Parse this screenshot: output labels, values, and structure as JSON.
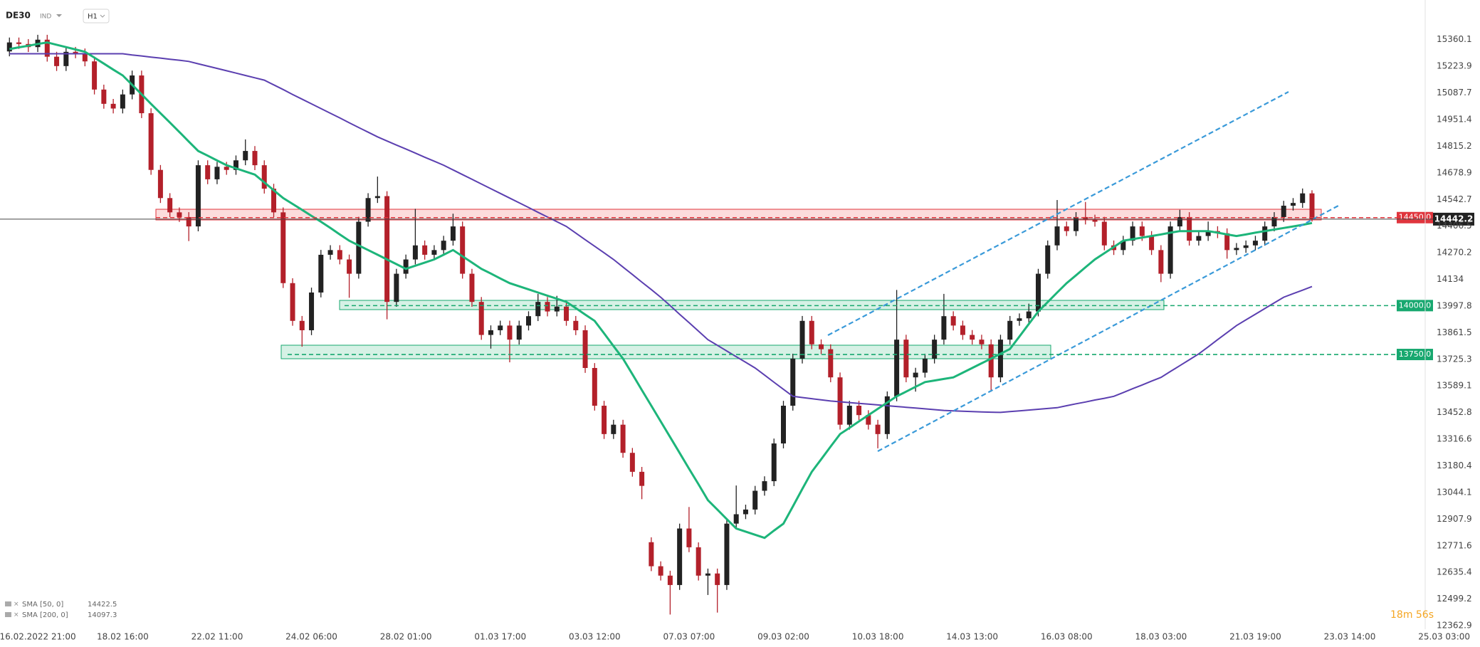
{
  "header": {
    "symbol": "DE30",
    "badge": "IND",
    "timeframe": "H1",
    "timer": "18m 56s"
  },
  "chart_data": {
    "type": "candlestick",
    "categories": [
      null,
      null,
      null,
      "16.02.2022 21:00",
      null,
      null,
      null,
      null,
      null,
      null,
      null,
      null,
      "18.02 16:00",
      null,
      null,
      null,
      null,
      null,
      null,
      null,
      null,
      null,
      "22.02 11:00",
      null,
      null,
      null,
      null,
      null,
      null,
      null,
      null,
      null,
      "24.02 06:00",
      null,
      null,
      null,
      null,
      null,
      null,
      null,
      null,
      null,
      "28.02 01:00",
      null,
      null,
      null,
      null,
      null,
      null,
      null,
      null,
      null,
      "01.03 17:00",
      null,
      null,
      null,
      null,
      null,
      null,
      null,
      null,
      null,
      "03.03 12:00",
      null,
      null,
      null,
      null,
      null,
      null,
      null,
      null,
      null,
      "07.03 07:00",
      null,
      null,
      null,
      null,
      null,
      null,
      null,
      null,
      null,
      "09.03 02:00",
      null,
      null,
      null,
      null,
      null,
      null,
      null,
      null,
      null,
      "10.03 18:00",
      null,
      null,
      null,
      null,
      null,
      null,
      null,
      null,
      null,
      "14.03 13:00",
      null,
      null,
      null,
      null,
      null,
      null,
      null,
      null,
      null,
      "16.03 08:00",
      null,
      null,
      null,
      null,
      null,
      null,
      null,
      null,
      null,
      "18.03 03:00",
      null,
      null,
      null,
      null,
      null,
      null,
      null,
      null,
      null,
      "21.03 19:00",
      null,
      null,
      null,
      null,
      null,
      null,
      null,
      null,
      null,
      "23.03 14:00",
      null,
      null,
      null,
      null,
      null,
      null,
      null,
      null,
      null,
      "25.03 03:00"
    ],
    "ohlc": [
      [
        15300,
        15371,
        15275,
        15346
      ],
      [
        15346,
        15371,
        15313,
        15338
      ],
      [
        15338,
        15363,
        15297,
        15322
      ],
      [
        15322,
        15385,
        15297,
        15360
      ],
      [
        15360,
        15385,
        15248,
        15273
      ],
      [
        15273,
        15298,
        15200,
        15225
      ],
      [
        15225,
        15323,
        15200,
        15298
      ],
      [
        15298,
        15323,
        15265,
        15290
      ],
      [
        15290,
        15315,
        15224,
        15249
      ],
      [
        15249,
        15274,
        15080,
        15105
      ],
      [
        15105,
        15130,
        15007,
        15032
      ],
      [
        15032,
        15057,
        14983,
        15008
      ],
      [
        15008,
        15105,
        14983,
        15080
      ],
      [
        15080,
        15202,
        15055,
        15177
      ],
      [
        15177,
        15202,
        14959,
        14984
      ],
      [
        14984,
        15009,
        14669,
        14694
      ],
      [
        14694,
        14719,
        14525,
        14550
      ],
      [
        14550,
        14575,
        14452,
        14477
      ],
      [
        14477,
        14502,
        14428,
        14453
      ],
      [
        14453,
        14478,
        14330,
        14405
      ],
      [
        14405,
        14743,
        14380,
        14718
      ],
      [
        14718,
        14743,
        14621,
        14646
      ],
      [
        14646,
        14735,
        14621,
        14710
      ],
      [
        14710,
        14735,
        14669,
        14694
      ],
      [
        14694,
        14768,
        14669,
        14743
      ],
      [
        14743,
        14850,
        14718,
        14791
      ],
      [
        14791,
        14816,
        14693,
        14718
      ],
      [
        14718,
        14743,
        14573,
        14598
      ],
      [
        14598,
        14623,
        14452,
        14477
      ],
      [
        14477,
        14502,
        14090,
        14115
      ],
      [
        14115,
        14140,
        13897,
        13922
      ],
      [
        13922,
        13947,
        13790,
        13874
      ],
      [
        13874,
        14092,
        13849,
        14067
      ],
      [
        14067,
        14285,
        14042,
        14260
      ],
      [
        14260,
        14309,
        14235,
        14284
      ],
      [
        14284,
        14309,
        14211,
        14236
      ],
      [
        14236,
        14261,
        14040,
        14163
      ],
      [
        14163,
        14454,
        14138,
        14429
      ],
      [
        14429,
        14575,
        14404,
        14550
      ],
      [
        14550,
        14660,
        14525,
        14560
      ],
      [
        14560,
        14585,
        13930,
        14019
      ],
      [
        14019,
        14188,
        13994,
        14163
      ],
      [
        14163,
        14261,
        14138,
        14236
      ],
      [
        14236,
        14495,
        14211,
        14308
      ],
      [
        14308,
        14333,
        14235,
        14260
      ],
      [
        14260,
        14309,
        14235,
        14284
      ],
      [
        14284,
        14357,
        14259,
        14332
      ],
      [
        14332,
        14470,
        14307,
        14405
      ],
      [
        14405,
        14430,
        14138,
        14163
      ],
      [
        14163,
        14188,
        13994,
        14019
      ],
      [
        14019,
        14044,
        13825,
        13850
      ],
      [
        13850,
        13899,
        13780,
        13874
      ],
      [
        13874,
        13923,
        13849,
        13898
      ],
      [
        13898,
        13923,
        13710,
        13826
      ],
      [
        13826,
        13923,
        13801,
        13898
      ],
      [
        13898,
        13971,
        13873,
        13946
      ],
      [
        13946,
        14060,
        13921,
        14019
      ],
      [
        14019,
        14044,
        13945,
        13970
      ],
      [
        13970,
        14050,
        13945,
        13995
      ],
      [
        13995,
        14020,
        13897,
        13922
      ],
      [
        13922,
        13947,
        13849,
        13874
      ],
      [
        13874,
        13899,
        13656,
        13681
      ],
      [
        13681,
        13706,
        13463,
        13488
      ],
      [
        13488,
        13513,
        13318,
        13343
      ],
      [
        13343,
        13416,
        13318,
        13391
      ],
      [
        13391,
        13416,
        13222,
        13247
      ],
      [
        13247,
        13272,
        13125,
        13150
      ],
      [
        13150,
        13175,
        13010,
        13078
      ],
      [
        12790,
        12815,
        12642,
        12667
      ],
      [
        12667,
        12692,
        12594,
        12619
      ],
      [
        12619,
        12644,
        12420,
        12571
      ],
      [
        12571,
        12885,
        12546,
        12860
      ],
      [
        12860,
        12970,
        12739,
        12764
      ],
      [
        12764,
        12789,
        12594,
        12619
      ],
      [
        12619,
        12655,
        12520,
        12630
      ],
      [
        12630,
        12655,
        12430,
        12571
      ],
      [
        12571,
        12910,
        12546,
        12885
      ],
      [
        12885,
        13080,
        12860,
        12933
      ],
      [
        12933,
        12982,
        12908,
        12957
      ],
      [
        12957,
        13078,
        12932,
        13053
      ],
      [
        13053,
        13127,
        13028,
        13102
      ],
      [
        13102,
        13320,
        13077,
        13295
      ],
      [
        13295,
        13513,
        13270,
        13488
      ],
      [
        13488,
        13754,
        13463,
        13729
      ],
      [
        13729,
        13947,
        13704,
        13922
      ],
      [
        13922,
        13947,
        13777,
        13802
      ],
      [
        13802,
        13827,
        13752,
        13777
      ],
      [
        13777,
        13802,
        13608,
        13633
      ],
      [
        13633,
        13658,
        13366,
        13391
      ],
      [
        13391,
        13513,
        13366,
        13488
      ],
      [
        13488,
        13513,
        13415,
        13440
      ],
      [
        13440,
        13465,
        13366,
        13391
      ],
      [
        13391,
        13416,
        13270,
        13343
      ],
      [
        13343,
        13561,
        13318,
        13536
      ],
      [
        13536,
        14080,
        13511,
        13826
      ],
      [
        13826,
        13851,
        13608,
        13633
      ],
      [
        13633,
        13682,
        13560,
        13657
      ],
      [
        13657,
        13754,
        13632,
        13729
      ],
      [
        13729,
        13851,
        13704,
        13826
      ],
      [
        13826,
        14060,
        13801,
        13946
      ],
      [
        13946,
        13971,
        13873,
        13898
      ],
      [
        13898,
        13923,
        13825,
        13850
      ],
      [
        13850,
        13875,
        13801,
        13826
      ],
      [
        13826,
        13851,
        13777,
        13802
      ],
      [
        13802,
        13827,
        13560,
        13633
      ],
      [
        13633,
        13851,
        13608,
        13826
      ],
      [
        13826,
        13947,
        13801,
        13922
      ],
      [
        13922,
        13960,
        13897,
        13935
      ],
      [
        13935,
        14010,
        13910,
        13970
      ],
      [
        13970,
        14188,
        13945,
        14163
      ],
      [
        14163,
        14333,
        14138,
        14308
      ],
      [
        14308,
        14540,
        14283,
        14405
      ],
      [
        14405,
        14430,
        14356,
        14381
      ],
      [
        14381,
        14478,
        14356,
        14453
      ],
      [
        14453,
        14530,
        14415,
        14440
      ],
      [
        14440,
        14465,
        14404,
        14429
      ],
      [
        14429,
        14454,
        14283,
        14308
      ],
      [
        14308,
        14333,
        14259,
        14284
      ],
      [
        14284,
        14357,
        14259,
        14332
      ],
      [
        14332,
        14430,
        14307,
        14405
      ],
      [
        14405,
        14430,
        14331,
        14356
      ],
      [
        14356,
        14381,
        14259,
        14284
      ],
      [
        14284,
        14309,
        14120,
        14163
      ],
      [
        14163,
        14430,
        14138,
        14405
      ],
      [
        14405,
        14490,
        14380,
        14453
      ],
      [
        14453,
        14478,
        14307,
        14332
      ],
      [
        14332,
        14381,
        14307,
        14356
      ],
      [
        14356,
        14430,
        14331,
        14381
      ],
      [
        14381,
        14406,
        14345,
        14370
      ],
      [
        14370,
        14395,
        14240,
        14284
      ],
      [
        14284,
        14320,
        14259,
        14295
      ],
      [
        14295,
        14333,
        14270,
        14308
      ],
      [
        14308,
        14357,
        14283,
        14332
      ],
      [
        14332,
        14430,
        14307,
        14405
      ],
      [
        14405,
        14478,
        14380,
        14453
      ],
      [
        14453,
        14536,
        14428,
        14511
      ],
      [
        14511,
        14550,
        14486,
        14525
      ],
      [
        14525,
        14599,
        14500,
        14574
      ],
      [
        14574,
        14590,
        14430,
        14442.2
      ],
      null,
      null,
      null,
      null,
      null,
      null,
      null,
      null,
      null,
      null,
      null,
      null,
      null,
      null
    ],
    "up_color": "#222222",
    "down_color": "#b3202a",
    "series": [
      {
        "name": "SMA [200, 0]",
        "color": "#5b3fb0",
        "values": [
          15288,
          15288,
          15288,
          15288,
          15288,
          15288,
          15288,
          15288,
          15288,
          15288,
          15288,
          15288,
          15288,
          15282,
          15277,
          15271,
          15266,
          15260,
          15255,
          15249,
          15237,
          15225,
          15213,
          15201,
          15189,
          15177,
          15165,
          15153,
          15129,
          15105,
          15080,
          15056,
          15032,
          15008,
          14984,
          14960,
          14935,
          14911,
          14887,
          14863,
          14842,
          14821,
          14801,
          14780,
          14759,
          14739,
          14718,
          14694,
          14670,
          14646,
          14622,
          14598,
          14574,
          14550,
          14526,
          14502,
          14477,
          14453,
          14429,
          14405,
          14371,
          14337,
          14304,
          14270,
          14236,
          14197,
          14159,
          14120,
          14082,
          14043,
          14000,
          13956,
          13913,
          13869,
          13826,
          13797,
          13768,
          13739,
          13710,
          13681,
          13645,
          13608,
          13572,
          13536,
          13530,
          13524,
          13518,
          13512,
          13508,
          13504,
          13500,
          13496,
          13492,
          13488,
          13484,
          13480,
          13476,
          13472,
          13468,
          13464,
          13462,
          13460,
          13458,
          13456,
          13455,
          13454,
          13458,
          13462,
          13466,
          13470,
          13474,
          13478,
          13488,
          13498,
          13507,
          13517,
          13526,
          13536,
          13555,
          13575,
          13594,
          13614,
          13633,
          13663,
          13693,
          13723,
          13753,
          13789,
          13826,
          13862,
          13898,
          13927,
          13956,
          13985,
          14014,
          14043,
          14061,
          14079,
          14097.3,
          null,
          null,
          null,
          null,
          null,
          null,
          null,
          null,
          null,
          null,
          null,
          null,
          null,
          null
        ]
      },
      {
        "name": "SMA [50, 0]",
        "color": "#1db57a",
        "values": [
          15312,
          15321,
          15329,
          15338,
          15346,
          15334,
          15322,
          15310,
          15298,
          15268,
          15238,
          15207,
          15177,
          15129,
          15081,
          15032,
          14984,
          14936,
          14888,
          14839,
          14791,
          14767,
          14742,
          14718,
          14702,
          14686,
          14670,
          14630,
          14590,
          14550,
          14520,
          14490,
          14459,
          14429,
          14397,
          14364,
          14332,
          14308,
          14284,
          14260,
          14236,
          14212,
          14188,
          14204,
          14220,
          14236,
          14260,
          14284,
          14252,
          14220,
          14188,
          14164,
          14139,
          14115,
          14099,
          14083,
          14067,
          14051,
          14035,
          14019,
          13987,
          13954,
          13922,
          13858,
          13793,
          13729,
          13649,
          13568,
          13488,
          13408,
          13327,
          13247,
          13166,
          13086,
          13005,
          12957,
          12908,
          12860,
          12844,
          12828,
          12812,
          12849,
          12885,
          12973,
          13062,
          13150,
          13214,
          13279,
          13343,
          13375,
          13408,
          13440,
          13472,
          13504,
          13536,
          13560,
          13585,
          13609,
          13617,
          13625,
          13633,
          13657,
          13681,
          13705,
          13729,
          13754,
          13778,
          13842,
          13906,
          13970,
          14018,
          14067,
          14115,
          14155,
          14196,
          14236,
          14268,
          14300,
          14332,
          14340,
          14348,
          14356,
          14364,
          14373,
          14381,
          14381,
          14381,
          14381,
          14373,
          14364,
          14356,
          14364,
          14373,
          14381,
          14389,
          14397,
          14405,
          14413,
          14422.5,
          null,
          null,
          null,
          null,
          null,
          null,
          null,
          null,
          null,
          null,
          null,
          null,
          null,
          null
        ]
      }
    ],
    "levels": [
      {
        "value": 14450,
        "label": "14450.0",
        "color": "#e0353d"
      },
      {
        "value": 14000,
        "label": "14000.0",
        "color": "#17a86f"
      },
      {
        "value": 13750,
        "label": "13750.0",
        "color": "#17a86f"
      }
    ],
    "last_price": 14442.2,
    "ylim": [
      12345,
      15563
    ],
    "yticks": [
      15360.1,
      15223.9,
      15087.7,
      14951.4,
      14815.2,
      14678.9,
      14542.7,
      14406.5,
      14270.2,
      14134.0,
      13997.8,
      13861.5,
      13725.3,
      13589.1,
      13452.8,
      13316.6,
      13180.4,
      13044.1,
      12907.9,
      12771.6,
      12635.4,
      12499.2,
      12362.9
    ],
    "grid": false
  }
}
